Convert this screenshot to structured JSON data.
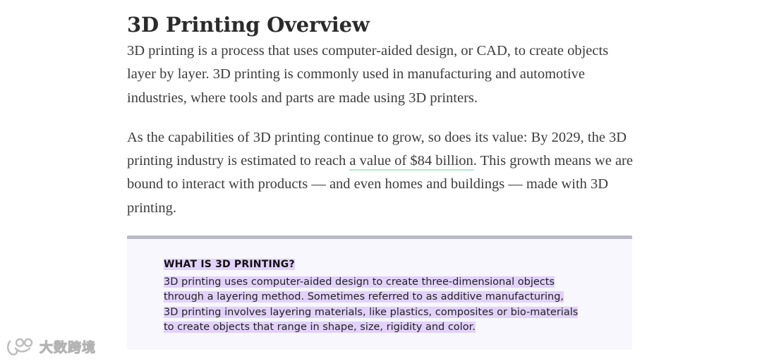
{
  "article": {
    "title": "3D Printing Overview",
    "paragraph1": "3D printing is a process that uses computer-aided design, or CAD, to create objects layer by layer. 3D printing is commonly used in manufacturing and automotive industries, where tools and parts are made using 3D printers.",
    "paragraph2_before": "As the capabilities of 3D printing continue to grow, so does its value: By 2029, the 3D printing industry is estimated to reach ",
    "paragraph2_link": "a value of $84 billion",
    "paragraph2_after": ". This growth means we are bound to interact with products — and even homes and buildings — made with 3D printing."
  },
  "callout": {
    "heading": "WHAT IS 3D PRINTING?",
    "body_lines": [
      "3D printing uses computer-aided design to create three-dimensional objects",
      "through a layering method. Sometimes referred to as additive manufacturing,",
      "3D printing involves layering materials, like plastics, composites or bio-materials",
      "to create objects that range in shape, size, rigidity and color."
    ]
  },
  "watermark": {
    "text": "大数跨境",
    "icon": "watermark-logo-icon"
  },
  "colors": {
    "highlight": "#e2d2fa",
    "link_underline": "#b7e6cf",
    "callout_bg": "#f7f7fd",
    "callout_border": "#b9b9c9"
  }
}
